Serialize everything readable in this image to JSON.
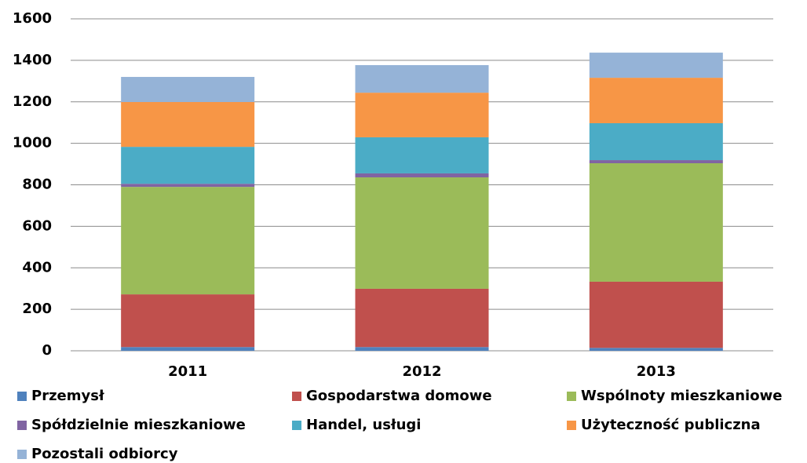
{
  "chart_data": {
    "type": "stacked_bar",
    "categories": [
      "2011",
      "2012",
      "2013"
    ],
    "series": [
      {
        "name": "Przemysł",
        "color": "#4f81bd",
        "values": [
          18,
          18,
          14
        ]
      },
      {
        "name": "Gospodarstwa domowe",
        "color": "#c0504d",
        "values": [
          254,
          281,
          319
        ]
      },
      {
        "name": "Wspólnoty mieszkaniowe",
        "color": "#9bbb59",
        "values": [
          518,
          537,
          571
        ]
      },
      {
        "name": "Spółdzielnie mieszkaniowe",
        "color": "#8064a2",
        "values": [
          15,
          19,
          15
        ]
      },
      {
        "name": "Handel, usługi",
        "color": "#4bacc6",
        "values": [
          178,
          174,
          178
        ]
      },
      {
        "name": "Użyteczność publiczna",
        "color": "#f79646",
        "values": [
          216,
          215,
          219
        ]
      },
      {
        "name": "Pozostali odbiorcy",
        "color": "#95b3d7",
        "values": [
          121,
          133,
          121
        ]
      }
    ],
    "ylim": [
      0,
      1600
    ],
    "yticks": [
      0,
      200,
      400,
      600,
      800,
      1000,
      1200,
      1400,
      1600
    ],
    "grid": true
  }
}
